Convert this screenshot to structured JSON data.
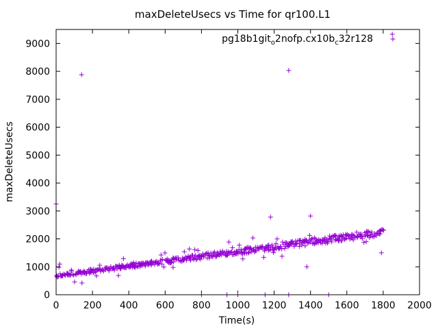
{
  "chart_data": {
    "type": "scatter",
    "title": "maxDeleteUsecs vs Time for qr100.L1",
    "xlabel": "Time(s)",
    "ylabel": "maxDeleteUsecs",
    "xlim": [
      0,
      2000
    ],
    "ylim": [
      0,
      9500
    ],
    "x_ticks": [
      0,
      200,
      400,
      600,
      800,
      1000,
      1200,
      1400,
      1600,
      1800,
      2000
    ],
    "y_ticks": [
      0,
      1000,
      2000,
      3000,
      4000,
      5000,
      6000,
      7000,
      8000,
      9000
    ],
    "grid": false,
    "legend_position": "top-right",
    "marker": "+",
    "series_color": "#9400d3",
    "series": [
      {
        "name_parts": [
          "pg18b1git",
          "o",
          "2nofp.cx10b",
          "c",
          "32r128"
        ],
        "trend": {
          "x_start": 0,
          "x_end": 1800,
          "y_start": 620,
          "y_end": 2100
        },
        "outliers": [
          [
            0,
            3250
          ],
          [
            140,
            7880
          ],
          [
            1280,
            8030
          ],
          [
            1850,
            9330
          ],
          [
            1180,
            2780
          ],
          [
            1400,
            2820
          ],
          [
            20,
            1100
          ],
          [
            1380,
            1000
          ],
          [
            1000,
            0
          ],
          [
            940,
            0
          ],
          [
            1150,
            0
          ],
          [
            1500,
            0
          ],
          [
            1790,
            1500
          ],
          [
            800,
            0
          ],
          [
            1280,
            0
          ]
        ]
      }
    ]
  }
}
